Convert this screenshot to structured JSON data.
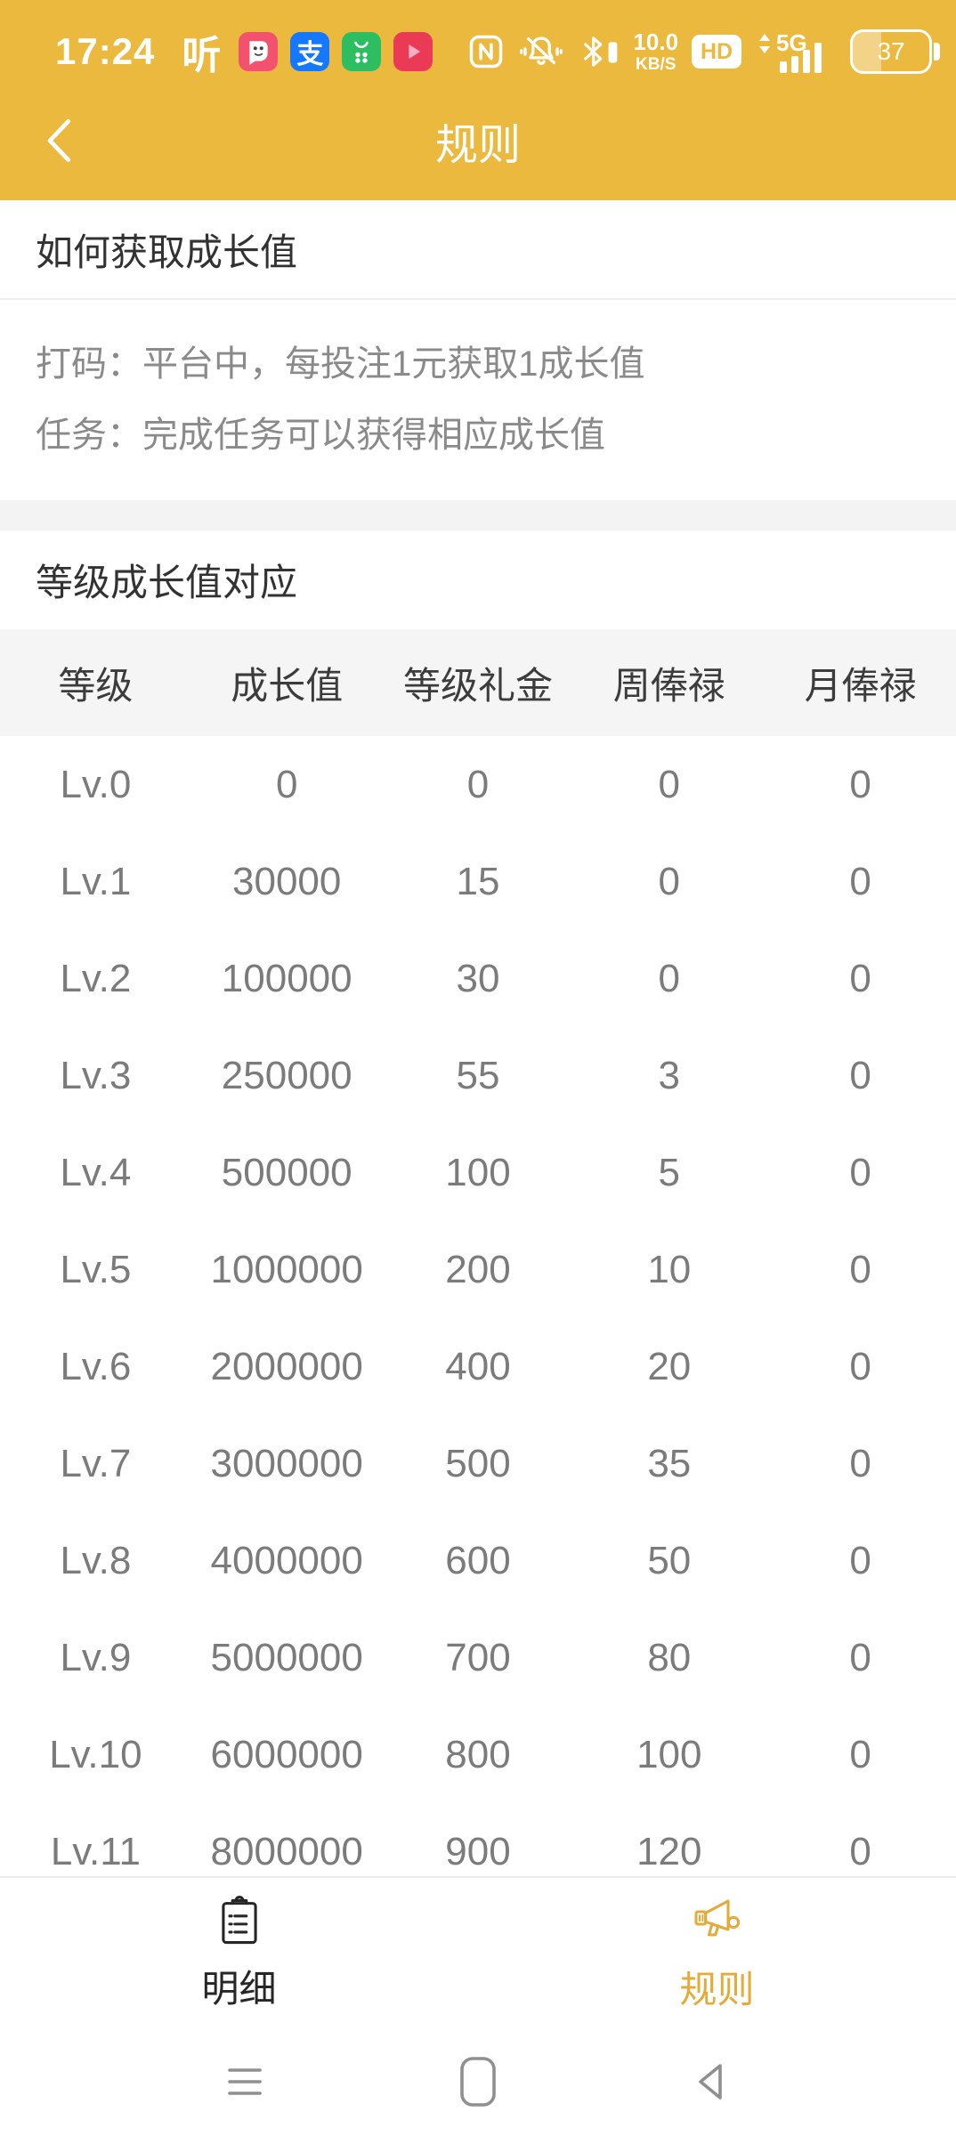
{
  "colors": {
    "primary_yellow": "#ECB93F",
    "accent_gold": "#E3AC3A",
    "heading_text": "#323232",
    "body_gray": "#8A8A8A",
    "row_gray": "#7B7B7B",
    "th_text": "#3C3C3C",
    "th_bg": "#F5F5F5",
    "strip_bg": "#F3F3F3",
    "nav_gray": "#8F8F8F"
  },
  "status_bar": {
    "time": "17:24",
    "listen_glyph": "听",
    "alipay_glyph": "支",
    "net_speed_value": "10.0",
    "net_speed_unit": "KB/S",
    "hd_label": "HD",
    "network_label": "5G",
    "battery_percent": "37",
    "left_icons": [
      "listen-glyph",
      "chat-app-icon",
      "alipay-app-icon",
      "market-app-icon",
      "video-app-icon",
      "notification-dot"
    ],
    "right_icons": [
      "nfc-icon",
      "mute-bell-icon",
      "bluetooth-icon",
      "network-speed",
      "hd-icon",
      "signal-5g-icon",
      "battery-indicator"
    ]
  },
  "header": {
    "title": "规则"
  },
  "how_section": {
    "title": "如何获取成长值",
    "lines": [
      "打码：平台中，每投注1元获取1成长值",
      "任务：完成任务可以获得相应成长值"
    ]
  },
  "levels_section": {
    "title": "等级成长值对应"
  },
  "table": {
    "headers": [
      "等级",
      "成长值",
      "等级礼金",
      "周俸禄",
      "月俸禄"
    ],
    "rows": [
      [
        "Lv.0",
        "0",
        "0",
        "0",
        "0"
      ],
      [
        "Lv.1",
        "30000",
        "15",
        "0",
        "0"
      ],
      [
        "Lv.2",
        "100000",
        "30",
        "0",
        "0"
      ],
      [
        "Lv.3",
        "250000",
        "55",
        "3",
        "0"
      ],
      [
        "Lv.4",
        "500000",
        "100",
        "5",
        "0"
      ],
      [
        "Lv.5",
        "1000000",
        "200",
        "10",
        "0"
      ],
      [
        "Lv.6",
        "2000000",
        "400",
        "20",
        "0"
      ],
      [
        "Lv.7",
        "3000000",
        "500",
        "35",
        "0"
      ],
      [
        "Lv.8",
        "4000000",
        "600",
        "50",
        "0"
      ],
      [
        "Lv.9",
        "5000000",
        "700",
        "80",
        "0"
      ],
      [
        "Lv.10",
        "6000000",
        "800",
        "100",
        "0"
      ],
      [
        "Lv.11",
        "8000000",
        "900",
        "120",
        "0"
      ]
    ]
  },
  "tab_bar": {
    "items": [
      {
        "label": "明细",
        "icon": "clipboard-icon",
        "active": false
      },
      {
        "label": "规则",
        "icon": "megaphone-icon",
        "active": true
      }
    ]
  },
  "android_nav": {
    "items": [
      "recents-icon",
      "home-icon",
      "back-icon"
    ]
  }
}
